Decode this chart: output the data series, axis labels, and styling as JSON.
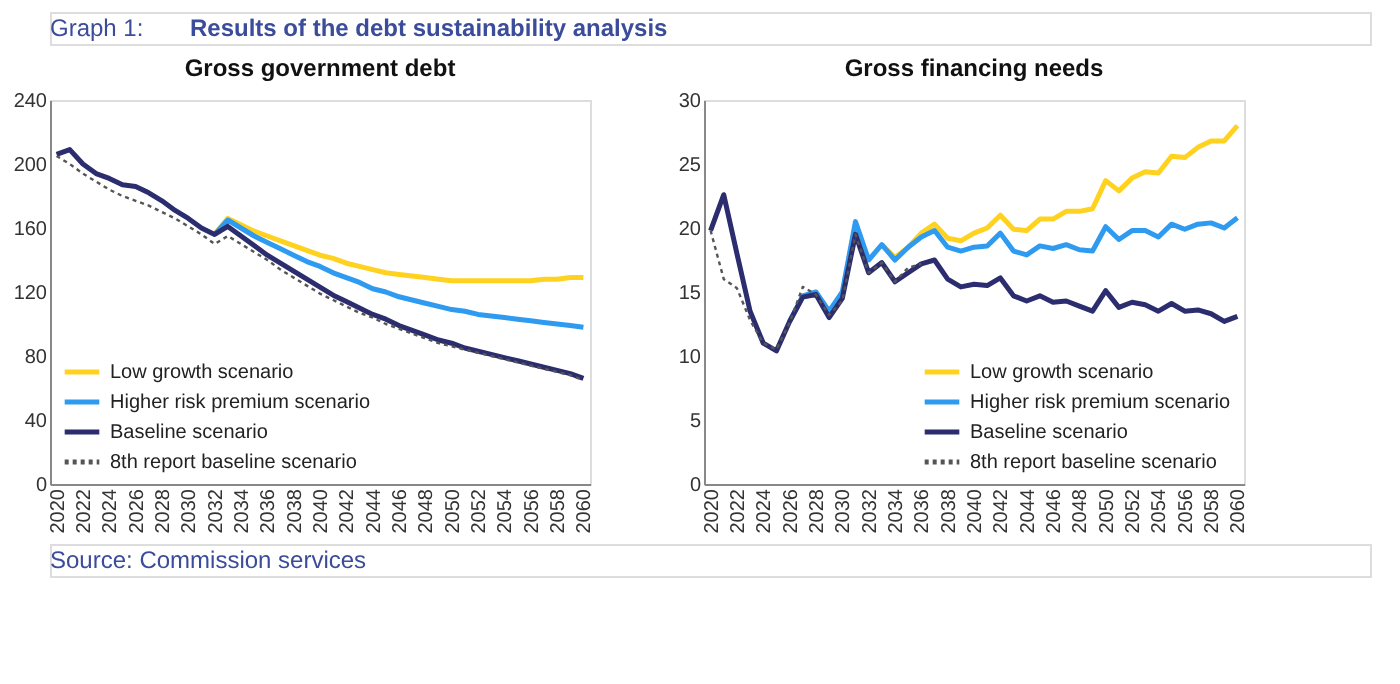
{
  "chart_data": [
    {
      "type": "line",
      "title": "Gross government debt",
      "annotations": [
        "Graph 1:",
        "Results of the debt sustainability analysis",
        "Source: Commission services"
      ],
      "categories": [
        "2020",
        null,
        "2022",
        null,
        "2024",
        null,
        "2026",
        null,
        "2028",
        null,
        "2030",
        null,
        "2032",
        null,
        "2034",
        null,
        "2036",
        null,
        "2038",
        null,
        "2040",
        null,
        "2042",
        null,
        "2044",
        null,
        "2046",
        null,
        "2048",
        null,
        "2050",
        null,
        "2052",
        null,
        "2054",
        null,
        "2056",
        null,
        "2058",
        null,
        "2060"
      ],
      "ylim": [
        0,
        240
      ],
      "yticks": [
        0,
        40,
        80,
        120,
        160,
        200,
        240
      ],
      "grid": false,
      "legend": "bottom left",
      "series": [
        {
          "name": "Low growth scenario",
          "color": "#ffd21f",
          "line_style": "solid",
          "values": [
            null,
            null,
            null,
            null,
            null,
            null,
            null,
            null,
            null,
            null,
            null,
            null,
            156,
            166,
            162,
            158,
            155,
            152,
            149,
            146,
            143,
            141,
            138,
            136,
            134,
            132,
            131,
            130,
            129,
            128,
            127,
            127,
            127,
            127,
            127,
            127,
            127,
            128,
            128,
            129,
            129
          ]
        },
        {
          "name": "Higher risk premium scenario",
          "color": "#2e9bf0",
          "line_style": "solid",
          "values": [
            null,
            null,
            null,
            null,
            null,
            null,
            null,
            null,
            null,
            null,
            null,
            null,
            156,
            165,
            160,
            155,
            151,
            147,
            143,
            139,
            136,
            132,
            129,
            126,
            122,
            120,
            117,
            115,
            113,
            111,
            109,
            108,
            106,
            105,
            104,
            103,
            102,
            101,
            100,
            99,
            98
          ]
        },
        {
          "name": "Baseline scenario",
          "color": "#2b2d6e",
          "line_style": "solid",
          "values": [
            206,
            209,
            200,
            194,
            191,
            187,
            186,
            182,
            177,
            171,
            166,
            160,
            156,
            161,
            155,
            149,
            143,
            138,
            133,
            128,
            123,
            118,
            114,
            110,
            106,
            103,
            99,
            96,
            93,
            90,
            88,
            85,
            83,
            81,
            79,
            77,
            75,
            73,
            71,
            69,
            66
          ]
        },
        {
          "name": "8th report baseline scenario",
          "color": "#555555",
          "line_style": "dotted",
          "values": [
            205,
            200,
            194,
            189,
            184,
            180,
            177,
            174,
            170,
            166,
            161,
            156,
            150,
            155,
            150,
            145,
            140,
            134,
            129,
            124,
            119,
            115,
            111,
            107,
            104,
            100,
            97,
            94,
            91,
            88,
            86,
            84,
            82,
            80,
            78,
            76,
            74,
            72,
            70,
            68,
            65
          ]
        }
      ]
    },
    {
      "type": "line",
      "title": "Gross financing needs",
      "categories": [
        "2020",
        null,
        "2022",
        null,
        "2024",
        null,
        "2026",
        null,
        "2028",
        null,
        "2030",
        null,
        "2032",
        null,
        "2034",
        null,
        "2036",
        null,
        "2038",
        null,
        "2040",
        null,
        "2042",
        null,
        "2044",
        null,
        "2046",
        null,
        "2048",
        null,
        "2050",
        null,
        "2052",
        null,
        "2054",
        null,
        "2056",
        null,
        "2058",
        null,
        "2060"
      ],
      "ylim": [
        0,
        30
      ],
      "yticks": [
        0,
        5,
        10,
        15,
        20,
        25,
        30
      ],
      "grid": false,
      "legend": "bottom right",
      "series": [
        {
          "name": "Low growth scenario",
          "color": "#ffd21f",
          "line_style": "solid",
          "values": [
            null,
            null,
            null,
            null,
            null,
            null,
            null,
            null,
            null,
            null,
            null,
            null,
            null,
            18.7,
            17.7,
            18.5,
            19.6,
            20.3,
            19.2,
            19,
            19.6,
            20,
            21,
            19.9,
            19.8,
            20.7,
            20.7,
            21.3,
            21.3,
            21.5,
            23.7,
            22.9,
            23.9,
            24.4,
            24.3,
            25.6,
            25.5,
            26.3,
            26.8,
            26.8,
            28
          ]
        },
        {
          "name": "Higher risk premium scenario",
          "color": "#2e9bf0",
          "line_style": "solid",
          "values": [
            null,
            null,
            null,
            null,
            null,
            null,
            12.7,
            14.7,
            15,
            13.5,
            15,
            20.5,
            17.5,
            18.7,
            17.5,
            18.5,
            19.3,
            19.8,
            18.5,
            18.2,
            18.5,
            18.6,
            19.6,
            18.2,
            17.9,
            18.6,
            18.4,
            18.7,
            18.3,
            18.2,
            20.1,
            19.1,
            19.8,
            19.8,
            19.3,
            20.3,
            19.9,
            20.3,
            20.4,
            20,
            20.8
          ]
        },
        {
          "name": "Baseline scenario",
          "color": "#2b2d6e",
          "line_style": "solid",
          "values": [
            19.8,
            22.6,
            18,
            13.5,
            11,
            10.4,
            12.7,
            14.6,
            14.8,
            13,
            14.5,
            19.5,
            16.5,
            17.3,
            15.8,
            16.5,
            17.2,
            17.5,
            16,
            15.4,
            15.6,
            15.5,
            16.1,
            14.7,
            14.3,
            14.7,
            14.2,
            14.3,
            13.9,
            13.5,
            15.1,
            13.8,
            14.2,
            14,
            13.5,
            14.1,
            13.5,
            13.6,
            13.3,
            12.7,
            13.1
          ]
        },
        {
          "name": "8th report baseline scenario",
          "color": "#555555",
          "line_style": "dotted",
          "values": [
            19.8,
            16,
            15.3,
            12.8,
            11,
            10.5,
            12.6,
            15.4,
            14.8,
            13.2,
            14.3,
            19.5,
            16.5,
            17.3,
            15.8,
            16.9,
            17.2,
            null,
            null,
            null,
            null,
            null,
            null,
            null,
            null,
            null,
            null,
            null,
            null,
            null,
            null,
            null,
            null,
            null,
            null,
            null,
            null,
            null,
            null,
            null,
            null
          ]
        }
      ]
    }
  ]
}
